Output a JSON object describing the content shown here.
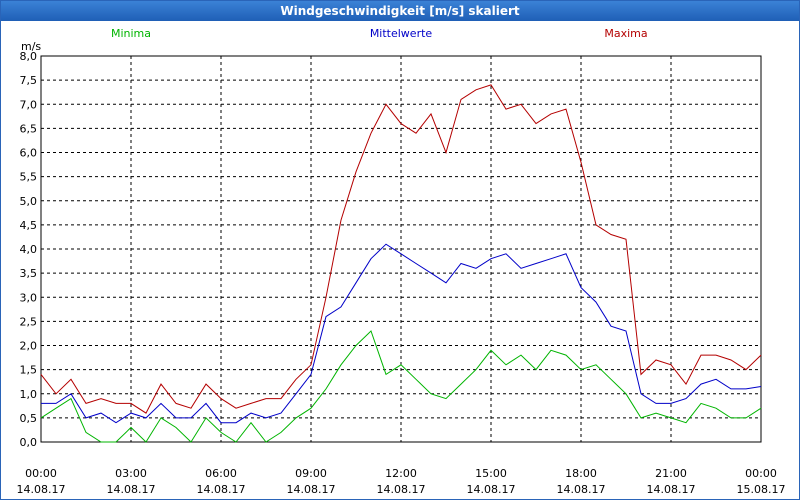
{
  "window": {
    "title": "Windgeschwindigkeit [m/s] skaliert"
  },
  "chart_data": {
    "type": "line",
    "title": "Windgeschwindigkeit [m/s] skaliert",
    "ylabel": "m/s",
    "ylim": [
      0,
      8
    ],
    "grid": true,
    "legend_placement": "top",
    "y_ticks": [
      "0,0",
      "0,5",
      "1,0",
      "1,5",
      "2,0",
      "2,5",
      "3,0",
      "3,5",
      "4,0",
      "4,5",
      "5,0",
      "5,5",
      "6,0",
      "6,5",
      "7,0",
      "7,5",
      "8,0"
    ],
    "x_ticks": [
      {
        "time": "00:00",
        "date": "14.08.17"
      },
      {
        "time": "03:00",
        "date": "14.08.17"
      },
      {
        "time": "06:00",
        "date": "14.08.17"
      },
      {
        "time": "09:00",
        "date": "14.08.17"
      },
      {
        "time": "12:00",
        "date": "14.08.17"
      },
      {
        "time": "15:00",
        "date": "14.08.17"
      },
      {
        "time": "18:00",
        "date": "14.08.17"
      },
      {
        "time": "21:00",
        "date": "14.08.17"
      },
      {
        "time": "00:00",
        "date": "15.08.17"
      }
    ],
    "x_hours": [
      0,
      0.5,
      1,
      1.5,
      2,
      2.5,
      3,
      3.5,
      4,
      4.5,
      5,
      5.5,
      6,
      6.5,
      7,
      7.5,
      8,
      8.5,
      9,
      9.5,
      10,
      10.5,
      11,
      11.5,
      12,
      12.5,
      13,
      13.5,
      14,
      14.5,
      15,
      15.5,
      16,
      16.5,
      17,
      17.5,
      18,
      18.5,
      19,
      19.5,
      20,
      20.5,
      21,
      21.5,
      22,
      22.5,
      23,
      23.5,
      24
    ],
    "series": [
      {
        "name": "Minima",
        "color": "#00b400",
        "values": [
          0.5,
          0.7,
          0.9,
          0.2,
          0.0,
          0.0,
          0.3,
          0.0,
          0.5,
          0.3,
          0.0,
          0.5,
          0.2,
          0.0,
          0.4,
          0.0,
          0.2,
          0.5,
          0.7,
          1.1,
          1.6,
          2.0,
          2.3,
          1.4,
          1.6,
          1.3,
          1.0,
          0.9,
          1.2,
          1.5,
          1.9,
          1.6,
          1.8,
          1.5,
          1.9,
          1.8,
          1.5,
          1.6,
          1.3,
          1.0,
          0.5,
          0.6,
          0.5,
          0.4,
          0.8,
          0.7,
          0.5,
          0.5,
          0.7
        ]
      },
      {
        "name": "Mittelwerte",
        "color": "#0000c8",
        "values": [
          0.8,
          0.8,
          1.0,
          0.5,
          0.6,
          0.4,
          0.6,
          0.5,
          0.8,
          0.5,
          0.5,
          0.8,
          0.4,
          0.4,
          0.6,
          0.5,
          0.6,
          1.0,
          1.4,
          2.6,
          2.8,
          3.3,
          3.8,
          4.1,
          3.9,
          3.7,
          3.5,
          3.3,
          3.7,
          3.6,
          3.8,
          3.9,
          3.6,
          3.7,
          3.8,
          3.9,
          3.2,
          2.9,
          2.4,
          2.3,
          1.0,
          0.8,
          0.8,
          0.9,
          1.2,
          1.3,
          1.1,
          1.1,
          1.15
        ]
      },
      {
        "name": "Maxima",
        "color": "#b40000",
        "values": [
          1.4,
          1.0,
          1.3,
          0.8,
          0.9,
          0.8,
          0.8,
          0.6,
          1.2,
          0.8,
          0.7,
          1.2,
          0.9,
          0.7,
          0.8,
          0.9,
          0.9,
          1.3,
          1.6,
          3.0,
          4.6,
          5.6,
          6.4,
          7.0,
          6.6,
          6.4,
          6.8,
          6.0,
          7.1,
          7.3,
          7.4,
          6.9,
          7.0,
          6.6,
          6.8,
          6.9,
          5.8,
          4.5,
          4.3,
          4.2,
          1.4,
          1.7,
          1.6,
          1.2,
          1.8,
          1.8,
          1.7,
          1.5,
          1.8
        ]
      }
    ]
  }
}
